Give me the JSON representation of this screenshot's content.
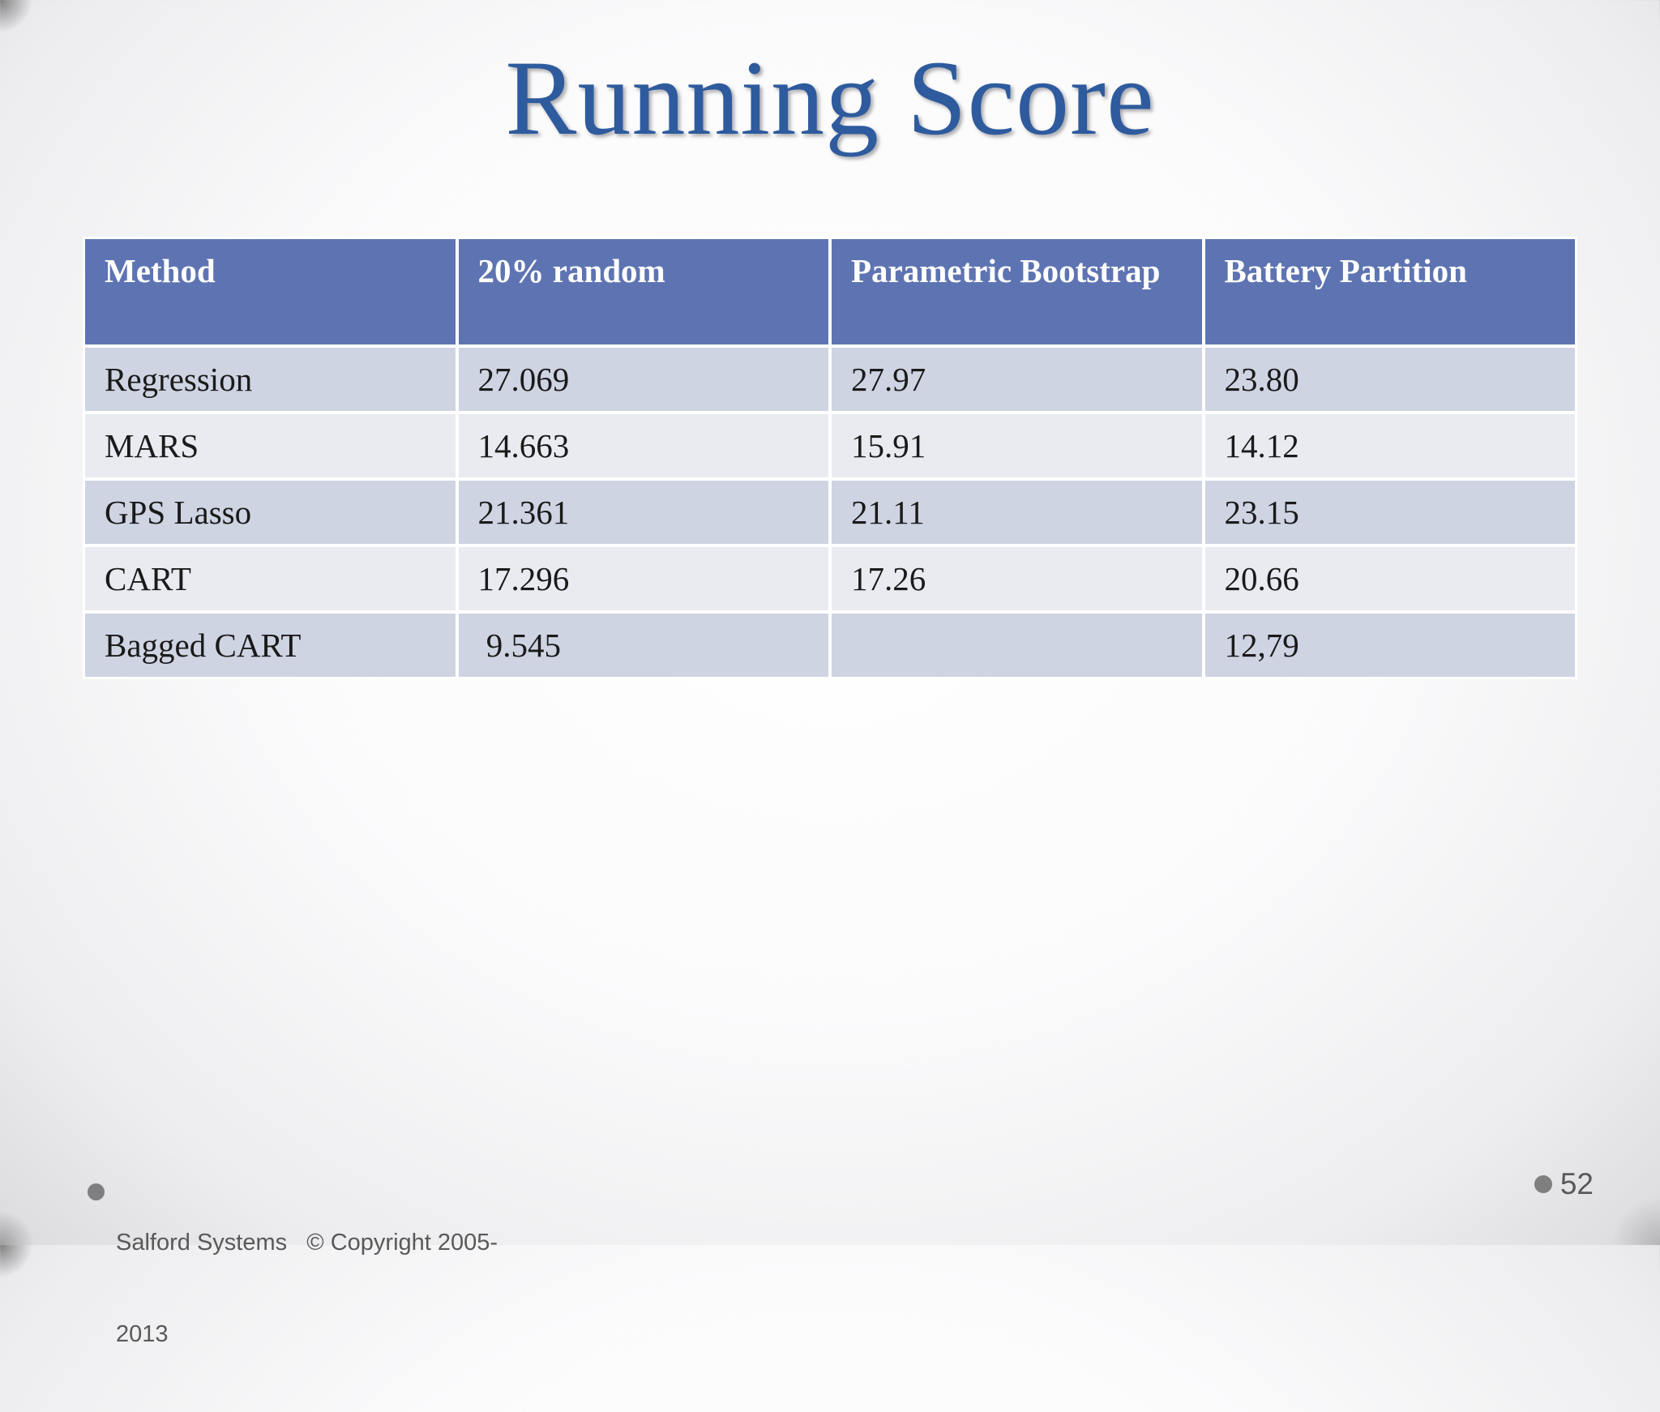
{
  "slide": {
    "title": "Running Score",
    "table": {
      "columns": [
        "Method",
        "20% random",
        "Parametric Bootstrap",
        "Battery Partition"
      ],
      "rows": [
        [
          "Regression",
          "27.069",
          "27.97",
          "23.80"
        ],
        [
          "MARS",
          "14.663",
          "15.91",
          "14.12"
        ],
        [
          "GPS Lasso",
          "21.361",
          "21.11",
          "23.15"
        ],
        [
          "CART",
          "17.296",
          "17.26",
          "20.66"
        ],
        [
          "Bagged CART",
          " 9.545",
          "",
          "12,79"
        ]
      ]
    },
    "footer": {
      "left_line1": "Salford Systems   © Copyright 2005-",
      "left_line2": "2013",
      "page_number": "52"
    },
    "colors": {
      "title_color": "#2e5b9d",
      "header_bg": "#5e74b2",
      "header_text": "#ffffff",
      "row_odd_bg": "#cfd4e3",
      "row_even_bg": "#e9ebf1",
      "cell_text": "#1a1a1a",
      "footer_text": "#595959",
      "bullet_color": "#7f7f7f"
    }
  }
}
